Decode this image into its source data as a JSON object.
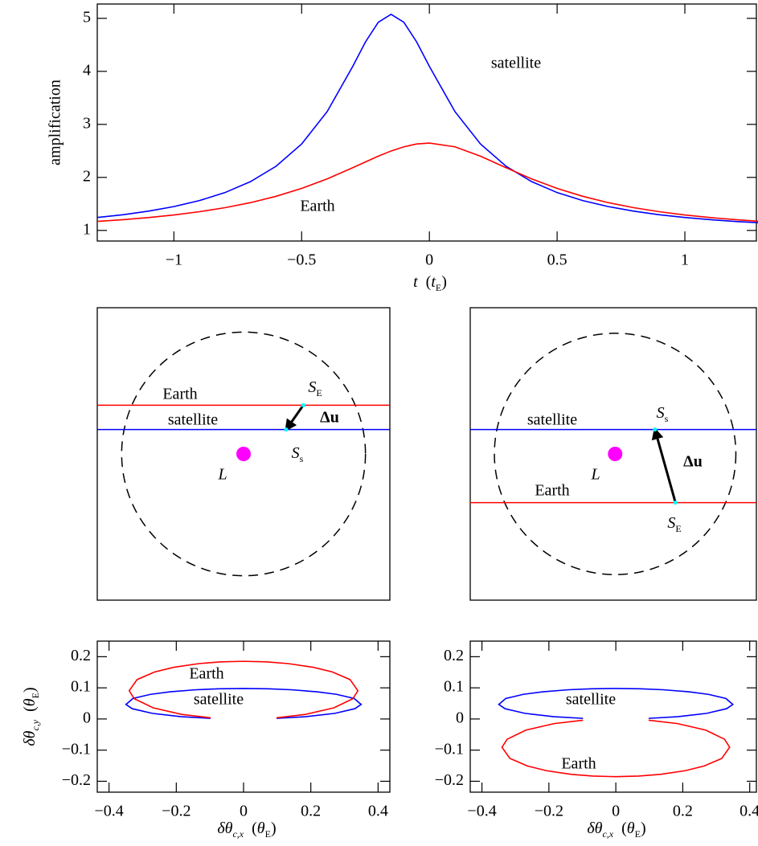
{
  "chart_data": [
    {
      "type": "line",
      "ylabel": "amplification",
      "xlabel": [
        {
          "text": "t",
          "style": "italic"
        },
        {
          "text": "  ("
        },
        {
          "text": "t",
          "style": "italic"
        },
        {
          "text": "E",
          "style": "sub"
        },
        {
          "text": ")"
        }
      ],
      "xlim": [
        -1.3,
        1.28
      ],
      "ylim": [
        0.8,
        5.27
      ],
      "xticks": [
        {
          "value": -1,
          "label": "−1"
        },
        {
          "value": -0.5,
          "label": "−0.5"
        },
        0,
        0.5,
        1
      ],
      "yticks": [
        1,
        2,
        3,
        4,
        5
      ],
      "x": [
        -1.3,
        -1.2,
        -1.1,
        -1.0,
        -0.9,
        -0.8,
        -0.7,
        -0.6,
        -0.5,
        -0.4,
        -0.3,
        -0.25,
        -0.2,
        -0.15,
        -0.1,
        -0.05,
        0,
        0.1,
        0.2,
        0.3,
        0.4,
        0.5,
        0.6,
        0.7,
        0.8,
        0.9,
        1.0,
        1.1,
        1.2,
        1.3
      ],
      "series": [
        {
          "name": "satellite",
          "color": "#0000ff",
          "values": [
            1.244,
            1.296,
            1.363,
            1.45,
            1.563,
            1.714,
            1.921,
            2.211,
            2.63,
            3.242,
            4.093,
            4.556,
            4.926,
            5.075,
            4.926,
            4.556,
            4.093,
            3.242,
            2.63,
            2.211,
            1.921,
            1.714,
            1.563,
            1.45,
            1.363,
            1.296,
            1.244,
            1.202,
            1.169,
            1.142
          ]
        },
        {
          "name": "Earth",
          "color": "#ff0000",
          "values": [
            1.17,
            1.203,
            1.242,
            1.292,
            1.353,
            1.429,
            1.524,
            1.644,
            1.792,
            1.973,
            2.183,
            2.293,
            2.4,
            2.498,
            2.577,
            2.63,
            2.648,
            2.577,
            2.4,
            2.183,
            1.973,
            1.792,
            1.644,
            1.524,
            1.429,
            1.353,
            1.292,
            1.242,
            1.203,
            1.17
          ]
        }
      ]
    },
    {
      "type": "lens-plane",
      "xlim": [
        -1.2,
        1.2
      ],
      "ylim": [
        -1.2,
        1.2
      ],
      "einstein_radius": 1,
      "lens": {
        "label": "L",
        "color": "#ff00ff",
        "x": 0,
        "y": 0
      },
      "trajectories": [
        {
          "name": "Earth",
          "color": "#ff0000",
          "u0": 0.4
        },
        {
          "name": "satellite",
          "color": "#0000ff",
          "u0": 0.2
        }
      ],
      "sources": [
        {
          "label": [
            {
              "text": "S",
              "style": "italic"
            },
            {
              "text": "E",
              "style": "sub"
            }
          ],
          "color": "#00ffff",
          "x": 0.49,
          "y": 0.4
        },
        {
          "label": [
            {
              "text": "S",
              "style": "italic"
            },
            {
              "text": "s",
              "style": "sub"
            }
          ],
          "color": "#00ffff",
          "x": 0.35,
          "y": 0.2
        }
      ],
      "arrow": {
        "label": "Δu",
        "color": "#000000"
      }
    },
    {
      "type": "lens-plane",
      "xlim": [
        -1.2,
        1.17
      ],
      "ylim": [
        -1.2,
        1.2
      ],
      "einstein_radius": 1,
      "lens": {
        "label": "L",
        "color": "#ff00ff",
        "x": 0,
        "y": 0
      },
      "trajectories": [
        {
          "name": "Earth",
          "color": "#ff0000",
          "u0": -0.4
        },
        {
          "name": "satellite",
          "color": "#0000ff",
          "u0": 0.2
        }
      ],
      "sources": [
        {
          "label": [
            {
              "text": "S",
              "style": "italic"
            },
            {
              "text": "E",
              "style": "sub"
            }
          ],
          "color": "#00ffff",
          "x": 0.5,
          "y": -0.4
        },
        {
          "label": [
            {
              "text": "S",
              "style": "italic"
            },
            {
              "text": "s",
              "style": "sub"
            }
          ],
          "color": "#00ffff",
          "x": 0.33,
          "y": 0.2
        }
      ],
      "arrow": {
        "label": "Δu",
        "color": "#000000"
      }
    },
    {
      "type": "line",
      "ylabel": [
        {
          "text": "δθ",
          "style": "italic"
        },
        {
          "text": "c,y",
          "style": "sub-italic"
        },
        {
          "text": "  ("
        },
        {
          "text": "θ",
          "style": "italic"
        },
        {
          "text": "E",
          "style": "sub"
        },
        {
          "text": ")"
        }
      ],
      "xlabel": [
        {
          "text": "δθ",
          "style": "italic"
        },
        {
          "text": "c,x",
          "style": "sub-italic"
        },
        {
          "text": "  ("
        },
        {
          "text": "θ",
          "style": "italic"
        },
        {
          "text": "E",
          "style": "sub"
        },
        {
          "text": ")"
        }
      ],
      "xlim": [
        -0.435,
        0.435
      ],
      "ylim": [
        -0.235,
        0.25
      ],
      "xticks": [
        {
          "value": -0.4,
          "label": "−0.4"
        },
        {
          "value": -0.2,
          "label": "−0.2"
        },
        0,
        0.2,
        0.4
      ],
      "yticks": [
        {
          "value": -0.2,
          "label": "−0.2"
        },
        {
          "value": -0.1,
          "label": "−0.1"
        },
        0,
        0.1,
        0.2
      ],
      "series_label_color": "#000000",
      "series": [
        {
          "name": "satellite",
          "color": "#0000ff",
          "x": [
            -0.098,
            -0.1849,
            -0.2717,
            -0.3311,
            -0.3497,
            -0.3289,
            -0.2767,
            -0.2183,
            -0.1408,
            -0.0727,
            0,
            0.0727,
            0.1408,
            0.2183,
            0.2767,
            0.3289,
            0.3497,
            0.3311,
            0.2717,
            0.1849,
            0.098
          ],
          "values": [
            0.002,
            0.0074,
            0.0181,
            0.0331,
            0.0466,
            0.0658,
            0.0791,
            0.0873,
            0.0939,
            0.097,
            0.098,
            0.097,
            0.0939,
            0.0873,
            0.0791,
            0.0658,
            0.0466,
            0.0331,
            0.0181,
            0.0074,
            0.002
          ]
        },
        {
          "name": "Earth",
          "color": "#ff0000",
          "x": [
            -0.0979,
            -0.1841,
            -0.2688,
            -0.3247,
            -0.3401,
            -0.3165,
            -0.2642,
            -0.2075,
            -0.1333,
            -0.0687,
            0,
            0.0687,
            0.1333,
            0.2075,
            0.2642,
            0.3165,
            0.3401,
            0.3247,
            0.2688,
            0.1841,
            0.0979
          ],
          "values": [
            0.0039,
            0.0147,
            0.0358,
            0.0649,
            0.0907,
            0.1266,
            0.1509,
            0.166,
            0.1778,
            0.1833,
            0.1852,
            0.1833,
            0.1778,
            0.166,
            0.1509,
            0.1266,
            0.0907,
            0.0649,
            0.0358,
            0.0147,
            0.0039
          ]
        }
      ]
    },
    {
      "type": "line",
      "xlabel": [
        {
          "text": "δθ",
          "style": "italic"
        },
        {
          "text": "c,x",
          "style": "sub-italic"
        },
        {
          "text": "  ("
        },
        {
          "text": "θ",
          "style": "italic"
        },
        {
          "text": "E",
          "style": "sub"
        },
        {
          "text": ")"
        }
      ],
      "xlim": [
        -0.435,
        0.42
      ],
      "ylim": [
        -0.235,
        0.25
      ],
      "xticks": [
        {
          "value": -0.4,
          "label": "−0.4"
        },
        {
          "value": -0.2,
          "label": "−0.2"
        },
        0,
        0.2,
        0.4
      ],
      "yticks": [
        {
          "value": -0.2,
          "label": "−0.2"
        },
        {
          "value": -0.1,
          "label": "−0.1"
        },
        0,
        0.1,
        0.2
      ],
      "series_label_color": "#000000",
      "series": [
        {
          "name": "satellite",
          "color": "#0000ff",
          "x": [
            -0.098,
            -0.1849,
            -0.2717,
            -0.3311,
            -0.3497,
            -0.3289,
            -0.2767,
            -0.2183,
            -0.1408,
            -0.0727,
            0,
            0.0727,
            0.1408,
            0.2183,
            0.2767,
            0.3289,
            0.3497,
            0.3311,
            0.2717,
            0.1849,
            0.098
          ],
          "values": [
            0.002,
            0.0074,
            0.0181,
            0.0331,
            0.0466,
            0.0658,
            0.0791,
            0.0873,
            0.0939,
            0.097,
            0.098,
            0.097,
            0.0939,
            0.0873,
            0.0791,
            0.0658,
            0.0466,
            0.0331,
            0.0181,
            0.0074,
            0.002
          ]
        },
        {
          "name": "Earth",
          "color": "#ff0000",
          "x": [
            -0.0979,
            -0.1841,
            -0.2688,
            -0.3247,
            -0.3401,
            -0.3165,
            -0.2642,
            -0.2075,
            -0.1333,
            -0.0687,
            0,
            0.0687,
            0.1333,
            0.2075,
            0.2642,
            0.3165,
            0.3401,
            0.3247,
            0.2688,
            0.1841,
            0.0979
          ],
          "values": [
            -0.0039,
            -0.0147,
            -0.0358,
            -0.0649,
            -0.0907,
            -0.1266,
            -0.1509,
            -0.166,
            -0.1778,
            -0.1833,
            -0.1852,
            -0.1833,
            -0.1778,
            -0.166,
            -0.1509,
            -0.1266,
            -0.0907,
            -0.0649,
            -0.0358,
            -0.0147,
            -0.0039
          ]
        }
      ]
    }
  ]
}
